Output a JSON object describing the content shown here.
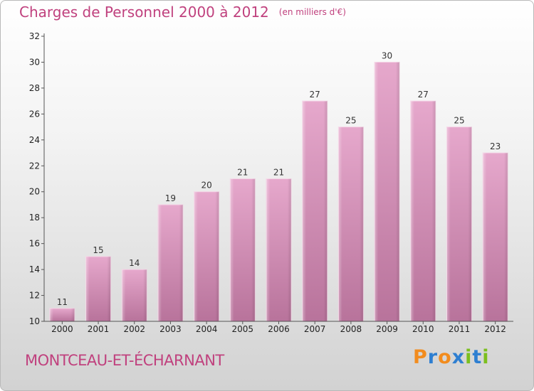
{
  "title": "Charges de Personnel 2000 à 2012",
  "subtitle": "(en milliers d'€)",
  "commune": "MONTCEAU-ET-ÉCHARNANT",
  "logo": {
    "letters": [
      "P",
      "r",
      "o",
      "x",
      "i",
      "t",
      "i"
    ],
    "colors": [
      "#f28c1e",
      "#2e7fd1",
      "#f28c1e",
      "#2e7fd1",
      "#7bbf1e",
      "#2e7fd1",
      "#7bbf1e"
    ]
  },
  "colors": {
    "bar": "#d98ab7",
    "text_accent": "#c0417e",
    "axis": "#555555"
  },
  "chart_data": {
    "type": "bar",
    "title": "Charges de Personnel 2000 à 2012",
    "subtitle": "(en milliers d'€)",
    "categories": [
      "2000",
      "2001",
      "2002",
      "2003",
      "2004",
      "2005",
      "2006",
      "2007",
      "2008",
      "2009",
      "2010",
      "2011",
      "2012"
    ],
    "values": [
      11,
      15,
      14,
      19,
      20,
      21,
      21,
      27,
      25,
      30,
      27,
      25,
      23
    ],
    "xlabel": "",
    "ylabel": "",
    "ylim": [
      10,
      32
    ],
    "yticks": [
      10,
      12,
      14,
      16,
      18,
      20,
      22,
      24,
      26,
      28,
      30,
      32
    ],
    "grid": false,
    "data_labels": true
  }
}
